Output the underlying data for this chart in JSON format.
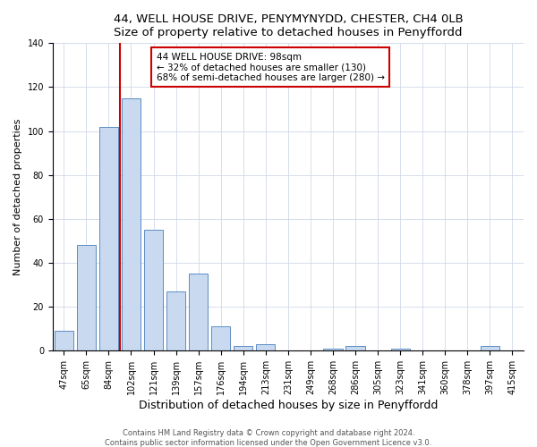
{
  "title1": "44, WELL HOUSE DRIVE, PENYMYNYDD, CHESTER, CH4 0LB",
  "title2": "Size of property relative to detached houses in Penyffordd",
  "xlabel": "Distribution of detached houses by size in Penyffordd",
  "ylabel": "Number of detached properties",
  "bar_labels": [
    "47sqm",
    "65sqm",
    "84sqm",
    "102sqm",
    "121sqm",
    "139sqm",
    "157sqm",
    "176sqm",
    "194sqm",
    "213sqm",
    "231sqm",
    "249sqm",
    "268sqm",
    "286sqm",
    "305sqm",
    "323sqm",
    "341sqm",
    "360sqm",
    "378sqm",
    "397sqm",
    "415sqm"
  ],
  "bar_values": [
    9,
    48,
    102,
    115,
    55,
    27,
    35,
    11,
    2,
    3,
    0,
    0,
    1,
    2,
    0,
    1,
    0,
    0,
    0,
    2,
    0
  ],
  "bar_color": "#c8d9f0",
  "bar_edge_color": "#5b8ec4",
  "vline_color": "#cc0000",
  "vline_index": 2.5,
  "annotation_title": "44 WELL HOUSE DRIVE: 98sqm",
  "annotation_line1": "← 32% of detached houses are smaller (130)",
  "annotation_line2": "68% of semi-detached houses are larger (280) →",
  "annotation_box_edge": "#cc0000",
  "ylim": [
    0,
    140
  ],
  "yticks": [
    0,
    20,
    40,
    60,
    80,
    100,
    120,
    140
  ],
  "footer1": "Contains HM Land Registry data © Crown copyright and database right 2024.",
  "footer2": "Contains public sector information licensed under the Open Government Licence v3.0.",
  "title_fontsize": 9.5,
  "ylabel_fontsize": 8,
  "xlabel_fontsize": 9,
  "tick_fontsize": 7,
  "ann_fontsize": 7.5,
  "footer_fontsize": 6
}
